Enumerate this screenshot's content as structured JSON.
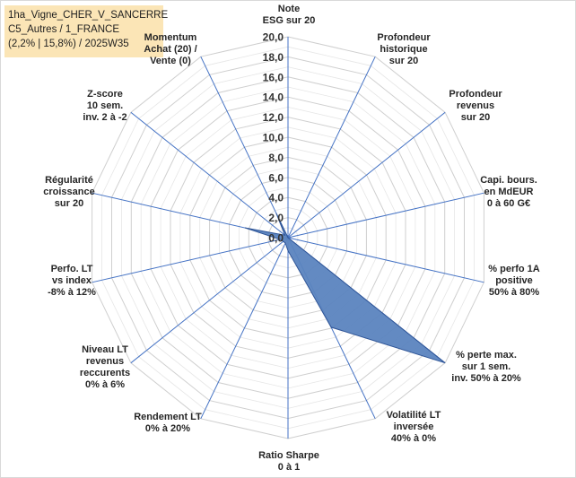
{
  "info": {
    "line1": "1ha_Vigne_CHER_V_SANCERRE",
    "line2": "C5_Autres / 1_FRANCE",
    "line3": "(2,2% | 15,8%) / 2025W35"
  },
  "chart_data": {
    "type": "radar",
    "title": "",
    "rlim": [
      0,
      20
    ],
    "tick_values": [
      0,
      2,
      4,
      6,
      8,
      10,
      12,
      14,
      16,
      18,
      20
    ],
    "tick_labels": [
      "0,0",
      "2,0",
      "4,0",
      "6,0",
      "8,0",
      "10,0",
      "12,0",
      "14,0",
      "16,0",
      "18,0",
      "20,0"
    ],
    "grid": true,
    "axes": [
      [
        "Note",
        "ESG sur 20"
      ],
      [
        "Profondeur",
        "historique",
        "sur 20"
      ],
      [
        "Profondeur",
        "revenus",
        "sur 20"
      ],
      [
        "Capi. bours.",
        "en MdEUR",
        "0 à 60 G€"
      ],
      [
        "% perfo 1A",
        "positive",
        "50% à 80%"
      ],
      [
        "% perte max.",
        "sur 1 sem.",
        "inv. 50% à 20%"
      ],
      [
        "Volatilité LT",
        "inversée",
        "40% à 0%"
      ],
      [
        "Ratio Sharpe",
        "0 à 1"
      ],
      [
        "Rendement LT",
        "0% à 20%"
      ],
      [
        "Niveau LT",
        "revenus",
        "reccurents",
        "0% à 6%"
      ],
      [
        "Perfo. LT",
        "vs index",
        "-8% à 12%"
      ],
      [
        "Régularité",
        "croissance",
        "sur 20"
      ],
      [
        "Z-score",
        "10 sem.",
        "inv. 2 à -2"
      ],
      [
        "Momentum",
        "Achat (20) /",
        "Vente (0)"
      ]
    ],
    "series": [
      {
        "values": [
          0,
          0,
          0,
          0,
          0,
          20,
          9.9,
          1.3,
          0.6,
          0.6,
          0.8,
          4.4,
          0.4,
          2.7
        ]
      }
    ],
    "colors": {
      "fill": "#5b84bf",
      "stroke": "#2f5597",
      "spoke": "#4472c4",
      "grid": "#d0d0d0"
    }
  }
}
